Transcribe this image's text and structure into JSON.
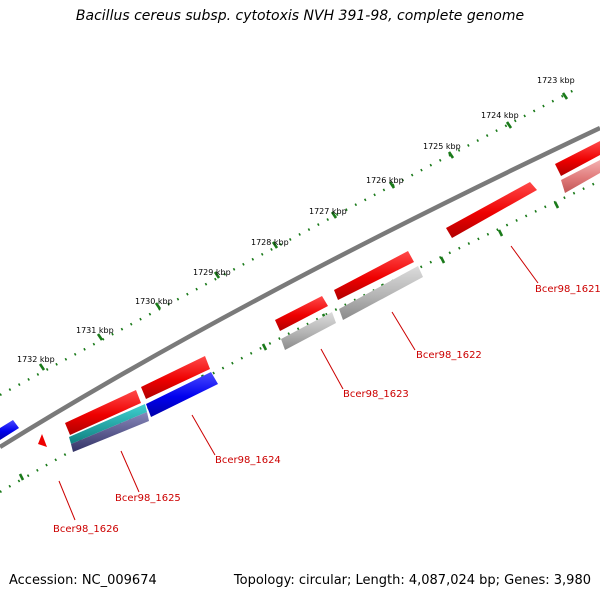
{
  "title": "Bacillus cereus subsp. cytotoxis NVH 391-98, complete genome",
  "footer": {
    "accession": "Accession: NC_009674",
    "summary": "Topology: circular; Length: 4,087,024 bp; Genes: 3,980"
  },
  "kbp_labels": [
    "1723 kbp",
    "1724 kbp",
    "1725 kbp",
    "1726 kbp",
    "1727 kbp",
    "1728 kbp",
    "1729 kbp",
    "1730 kbp",
    "1731 kbp",
    "1732 kbp"
  ],
  "gene_labels": [
    "Bcer98_1621",
    "Bcer98_1622",
    "Bcer98_1623",
    "Bcer98_1624",
    "Bcer98_1625",
    "Bcer98_1626"
  ],
  "colors": {
    "forward_gene": "#ee0000",
    "reverse_gene": "#0000ee",
    "gray_feature": "#b0b0b0",
    "pink_feature": "#e07a7a",
    "teal_feature": "#20a0a0",
    "purple_feature": "#555599",
    "backbone": "#777777",
    "tick": "#1a7a1a",
    "label_line": "#cc0000"
  }
}
